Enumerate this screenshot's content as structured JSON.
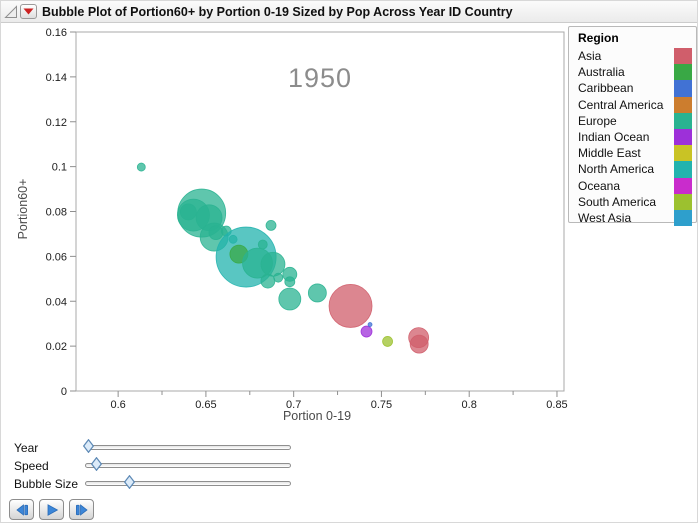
{
  "title": "Bubble Plot of Portion60+ by Portion 0-19 Sized by Pop Across Year ID Country",
  "legend": {
    "title": "Region",
    "items": [
      {
        "label": "Asia",
        "color": "#d05e6b"
      },
      {
        "label": "Australia",
        "color": "#39a845"
      },
      {
        "label": "Caribbean",
        "color": "#4172d4"
      },
      {
        "label": "Central America",
        "color": "#cc7d2e"
      },
      {
        "label": "Europe",
        "color": "#2ab391"
      },
      {
        "label": "Indian Ocean",
        "color": "#9d30d9"
      },
      {
        "label": "Middle East",
        "color": "#c9c325"
      },
      {
        "label": "North America",
        "color": "#22b3ae"
      },
      {
        "label": "Oceana",
        "color": "#c92ccc"
      },
      {
        "label": "South America",
        "color": "#9cc12f"
      },
      {
        "label": "West Asia",
        "color": "#2e9fcc"
      }
    ]
  },
  "chart_data": {
    "type": "scatter",
    "subtype": "bubble",
    "annotation": "1950",
    "xlabel": "Portion 0-19",
    "ylabel": "Portion60+",
    "xlim": [
      0.576,
      0.854
    ],
    "ylim": [
      0,
      0.16
    ],
    "x_ticks": [
      0.6,
      0.65,
      0.7,
      0.75,
      0.8,
      0.85
    ],
    "x_minor_ticks": [
      0.625,
      0.675,
      0.725,
      0.775,
      0.825
    ],
    "y_ticks": [
      0,
      0.02,
      0.04,
      0.06,
      0.08,
      0.1,
      0.12,
      0.14,
      0.16
    ],
    "grid": false,
    "legend_position": "right",
    "bubble_opacity": 0.75,
    "bubbles": [
      {
        "x": 0.6132,
        "y": 0.0998,
        "r": 4,
        "region": "Europe"
      },
      {
        "x": 0.6429,
        "y": 0.0784,
        "r": 16,
        "region": "Europe"
      },
      {
        "x": 0.64,
        "y": 0.0798,
        "r": 8,
        "region": "Europe"
      },
      {
        "x": 0.6476,
        "y": 0.0793,
        "r": 24,
        "region": "Europe"
      },
      {
        "x": 0.6518,
        "y": 0.0772,
        "r": 13,
        "region": "Europe"
      },
      {
        "x": 0.6547,
        "y": 0.0686,
        "r": 14,
        "region": "Europe"
      },
      {
        "x": 0.6557,
        "y": 0.0706,
        "r": 7,
        "region": "Europe"
      },
      {
        "x": 0.6616,
        "y": 0.0713,
        "r": 5,
        "region": "Europe"
      },
      {
        "x": 0.6655,
        "y": 0.0676,
        "r": 4,
        "region": "Europe"
      },
      {
        "x": 0.6729,
        "y": 0.0597,
        "r": 30,
        "region": "North America"
      },
      {
        "x": 0.6688,
        "y": 0.061,
        "r": 9,
        "region": "Australia"
      },
      {
        "x": 0.6794,
        "y": 0.057,
        "r": 15,
        "region": "Europe"
      },
      {
        "x": 0.6824,
        "y": 0.0653,
        "r": 4.5,
        "region": "Europe"
      },
      {
        "x": 0.6871,
        "y": 0.0738,
        "r": 5,
        "region": "Europe"
      },
      {
        "x": 0.6882,
        "y": 0.0565,
        "r": 12,
        "region": "Europe"
      },
      {
        "x": 0.6853,
        "y": 0.049,
        "r": 7,
        "region": "Europe"
      },
      {
        "x": 0.6912,
        "y": 0.0505,
        "r": 4.5,
        "region": "Europe"
      },
      {
        "x": 0.6978,
        "y": 0.052,
        "r": 7,
        "region": "Europe"
      },
      {
        "x": 0.6978,
        "y": 0.0487,
        "r": 5,
        "region": "Europe"
      },
      {
        "x": 0.6978,
        "y": 0.041,
        "r": 11,
        "region": "Europe"
      },
      {
        "x": 0.7135,
        "y": 0.0437,
        "r": 9,
        "region": "Europe"
      },
      {
        "x": 0.7324,
        "y": 0.0379,
        "r": 21.5,
        "region": "Asia"
      },
      {
        "x": 0.7712,
        "y": 0.0238,
        "r": 10,
        "region": "Asia"
      },
      {
        "x": 0.7715,
        "y": 0.0209,
        "r": 9,
        "region": "Asia"
      },
      {
        "x": 0.7415,
        "y": 0.0265,
        "r": 5.5,
        "region": "Indian Ocean"
      },
      {
        "x": 0.7435,
        "y": 0.0296,
        "r": 2,
        "region": "Caribbean"
      },
      {
        "x": 0.7535,
        "y": 0.0221,
        "r": 5,
        "region": "South America"
      }
    ]
  },
  "controls": {
    "sliders": [
      {
        "label": "Year",
        "fraction": 0.016
      },
      {
        "label": "Speed",
        "fraction": 0.055
      },
      {
        "label": "Bubble Size",
        "fraction": 0.217
      }
    ],
    "buttons": [
      {
        "icon": "step-back"
      },
      {
        "icon": "play"
      },
      {
        "icon": "step-forward"
      }
    ]
  },
  "colors": {
    "accent_blue": "#3c86d8",
    "accent_blue_dark": "#2a6cb8",
    "red_triangle": "#cc2222",
    "plot_frame": "#a8a8a8",
    "tick": "#8f8f8f",
    "annotation_gray": "#8c8c8c"
  }
}
